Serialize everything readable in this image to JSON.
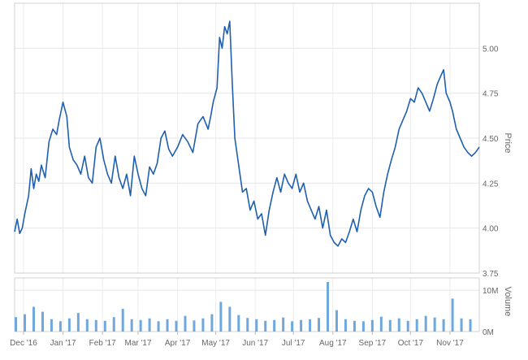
{
  "chart_data": [
    {
      "type": "line",
      "ylabel": "Price",
      "ylim": [
        3.75,
        5.25
      ],
      "yticks": [
        3.75,
        4.0,
        4.25,
        4.5,
        4.75,
        5.0
      ],
      "ytick_labels": [
        "3.75",
        "4.00",
        "4.25",
        "4.50",
        "4.75",
        "5.00"
      ],
      "xlim": [
        "2016-11-24",
        "2017-11-24"
      ],
      "xticks": [
        "2016-12-01",
        "2017-01-01",
        "2017-02-01",
        "2017-03-01",
        "2017-04-01",
        "2017-05-01",
        "2017-06-01",
        "2017-07-01",
        "2017-08-01",
        "2017-09-01",
        "2017-10-01",
        "2017-11-01"
      ],
      "xtick_labels": [
        "Dec '16",
        "Jan '17",
        "Feb '17",
        "Mar '17",
        "Apr '17",
        "May '17",
        "Jun '17",
        "Jul '17",
        "Aug '17",
        "Sep '17",
        "Oct '17",
        "Nov '17"
      ],
      "grid": true,
      "line_color": "#1f5fae",
      "series": [
        {
          "x": [
            "2016-11-24",
            "2016-11-26",
            "2016-11-28",
            "2016-11-30",
            "2016-12-02",
            "2016-12-05",
            "2016-12-07",
            "2016-12-09",
            "2016-12-11",
            "2016-12-13",
            "2016-12-15",
            "2016-12-18",
            "2016-12-21",
            "2016-12-24",
            "2016-12-27",
            "2016-12-29",
            "2017-01-01",
            "2017-01-04",
            "2017-01-06",
            "2017-01-09",
            "2017-01-12",
            "2017-01-15",
            "2017-01-18",
            "2017-01-21",
            "2017-01-24",
            "2017-01-27",
            "2017-01-30",
            "2017-02-02",
            "2017-02-05",
            "2017-02-08",
            "2017-02-11",
            "2017-02-14",
            "2017-02-17",
            "2017-02-20",
            "2017-02-23",
            "2017-02-26",
            "2017-03-01",
            "2017-03-04",
            "2017-03-07",
            "2017-03-10",
            "2017-03-13",
            "2017-03-16",
            "2017-03-19",
            "2017-03-22",
            "2017-03-25",
            "2017-03-28",
            "2017-04-01",
            "2017-04-05",
            "2017-04-09",
            "2017-04-13",
            "2017-04-17",
            "2017-04-21",
            "2017-04-25",
            "2017-04-27",
            "2017-04-29",
            "2017-05-02",
            "2017-05-04",
            "2017-05-06",
            "2017-05-08",
            "2017-05-10",
            "2017-05-12",
            "2017-05-14",
            "2017-05-16",
            "2017-05-19",
            "2017-05-22",
            "2017-05-25",
            "2017-05-28",
            "2017-05-31",
            "2017-06-03",
            "2017-06-06",
            "2017-06-09",
            "2017-06-12",
            "2017-06-15",
            "2017-06-18",
            "2017-06-21",
            "2017-06-24",
            "2017-06-27",
            "2017-06-30",
            "2017-07-03",
            "2017-07-06",
            "2017-07-09",
            "2017-07-12",
            "2017-07-15",
            "2017-07-18",
            "2017-07-21",
            "2017-07-24",
            "2017-07-27",
            "2017-07-30",
            "2017-08-02",
            "2017-08-05",
            "2017-08-08",
            "2017-08-11",
            "2017-08-14",
            "2017-08-17",
            "2017-08-20",
            "2017-08-23",
            "2017-08-26",
            "2017-08-29",
            "2017-09-01",
            "2017-09-04",
            "2017-09-07",
            "2017-09-10",
            "2017-09-13",
            "2017-09-16",
            "2017-09-19",
            "2017-09-22",
            "2017-09-25",
            "2017-09-28",
            "2017-10-01",
            "2017-10-04",
            "2017-10-07",
            "2017-10-10",
            "2017-10-13",
            "2017-10-16",
            "2017-10-19",
            "2017-10-22",
            "2017-10-25",
            "2017-10-27",
            "2017-10-29",
            "2017-11-01",
            "2017-11-03",
            "2017-11-06",
            "2017-11-09",
            "2017-11-12",
            "2017-11-15",
            "2017-11-18",
            "2017-11-21",
            "2017-11-24"
          ],
          "y": [
            3.98,
            4.05,
            3.97,
            4.0,
            4.08,
            4.18,
            4.33,
            4.22,
            4.3,
            4.26,
            4.35,
            4.28,
            4.48,
            4.55,
            4.52,
            4.6,
            4.7,
            4.62,
            4.45,
            4.38,
            4.35,
            4.3,
            4.4,
            4.28,
            4.25,
            4.45,
            4.5,
            4.38,
            4.3,
            4.25,
            4.4,
            4.28,
            4.22,
            4.3,
            4.18,
            4.4,
            4.3,
            4.22,
            4.18,
            4.34,
            4.3,
            4.36,
            4.5,
            4.54,
            4.44,
            4.4,
            4.45,
            4.52,
            4.48,
            4.42,
            4.58,
            4.62,
            4.55,
            4.62,
            4.7,
            4.78,
            5.06,
            5.0,
            5.12,
            5.08,
            5.15,
            4.8,
            4.5,
            4.35,
            4.2,
            4.22,
            4.1,
            4.15,
            4.05,
            4.08,
            3.96,
            4.1,
            4.2,
            4.28,
            4.2,
            4.3,
            4.25,
            4.22,
            4.3,
            4.2,
            4.25,
            4.15,
            4.1,
            4.05,
            4.12,
            4.0,
            4.1,
            3.96,
            3.92,
            3.9,
            3.94,
            3.92,
            3.98,
            4.05,
            3.98,
            4.1,
            4.18,
            4.22,
            4.2,
            4.12,
            4.06,
            4.2,
            4.3,
            4.38,
            4.45,
            4.55,
            4.6,
            4.65,
            4.72,
            4.7,
            4.78,
            4.75,
            4.7,
            4.65,
            4.72,
            4.8,
            4.85,
            4.88,
            4.75,
            4.7,
            4.65,
            4.55,
            4.5,
            4.45,
            4.42,
            4.4,
            4.42,
            4.45
          ]
        }
      ]
    },
    {
      "type": "bar",
      "ylabel": "Volume",
      "ylim": [
        0,
        13000000
      ],
      "yticks": [
        0,
        10000000
      ],
      "ytick_labels": [
        "0M",
        "10M"
      ],
      "bar_color": "#6fa8dc",
      "x": [
        "2016-11-25",
        "2016-12-02",
        "2016-12-09",
        "2016-12-16",
        "2016-12-23",
        "2016-12-30",
        "2017-01-06",
        "2017-01-13",
        "2017-01-20",
        "2017-01-27",
        "2017-02-03",
        "2017-02-10",
        "2017-02-17",
        "2017-02-24",
        "2017-03-03",
        "2017-03-10",
        "2017-03-17",
        "2017-03-24",
        "2017-03-31",
        "2017-04-07",
        "2017-04-14",
        "2017-04-21",
        "2017-04-28",
        "2017-05-05",
        "2017-05-12",
        "2017-05-19",
        "2017-05-26",
        "2017-06-02",
        "2017-06-09",
        "2017-06-16",
        "2017-06-23",
        "2017-06-30",
        "2017-07-07",
        "2017-07-14",
        "2017-07-21",
        "2017-07-28",
        "2017-08-04",
        "2017-08-11",
        "2017-08-18",
        "2017-08-25",
        "2017-09-01",
        "2017-09-08",
        "2017-09-15",
        "2017-09-22",
        "2017-09-29",
        "2017-10-06",
        "2017-10-13",
        "2017-10-20",
        "2017-10-27",
        "2017-11-03",
        "2017-11-10",
        "2017-11-17"
      ],
      "values": [
        3500000,
        4200000,
        6000000,
        4800000,
        3000000,
        2500000,
        3200000,
        4500000,
        3000000,
        2800000,
        2600000,
        3500000,
        5500000,
        3000000,
        2800000,
        3200000,
        2500000,
        3000000,
        2600000,
        3800000,
        2700000,
        3200000,
        4200000,
        7200000,
        6000000,
        4000000,
        3300000,
        3000000,
        2600000,
        2800000,
        3400000,
        2500000,
        2800000,
        3000000,
        3300000,
        12000000,
        5200000,
        3000000,
        2600000,
        2500000,
        2800000,
        3600000,
        2800000,
        3200000,
        2600000,
        3000000,
        3800000,
        3400000,
        3000000,
        8000000,
        3200000,
        3000000
      ]
    }
  ]
}
